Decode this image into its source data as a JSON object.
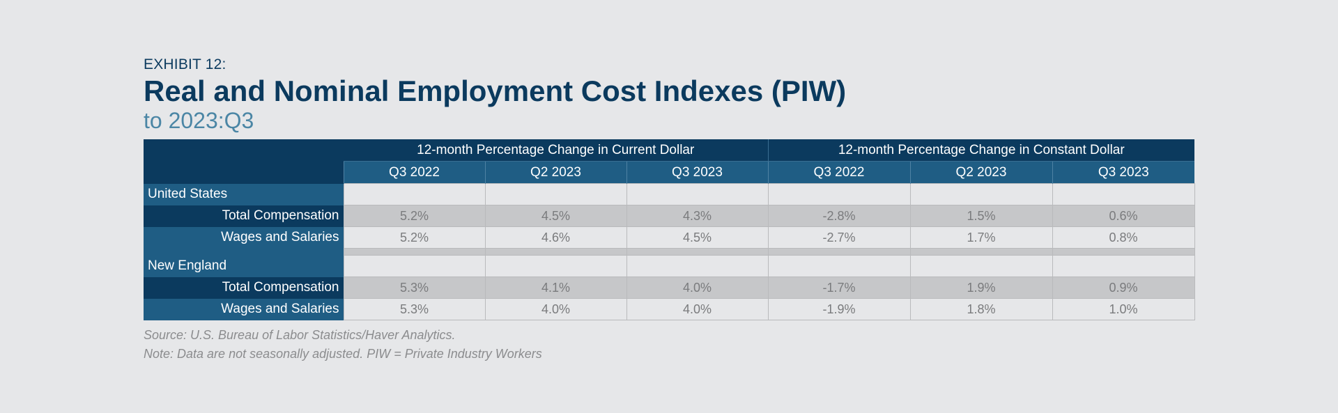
{
  "header": {
    "eyebrow": "EXHIBIT 12:",
    "title": "Real and Nominal Employment Cost Indexes (PIW)",
    "subtitle": "to 2023:Q3"
  },
  "chart_data": {
    "type": "table",
    "column_groups": [
      "12-month Percentage Change in Current Dollar",
      "12-month Percentage Change in Constant Dollar"
    ],
    "columns": [
      "Q3 2022",
      "Q2 2023",
      "Q3 2023",
      "Q3 2022",
      "Q2 2023",
      "Q3 2023"
    ],
    "sections": [
      {
        "name": "United States",
        "rows": [
          {
            "label": "Total Compensation",
            "values": [
              "5.2%",
              "4.5%",
              "4.3%",
              "-2.8%",
              "1.5%",
              "0.6%"
            ]
          },
          {
            "label": "Wages and Salaries",
            "values": [
              "5.2%",
              "4.6%",
              "4.5%",
              "-2.7%",
              "1.7%",
              "0.8%"
            ]
          }
        ]
      },
      {
        "name": "New England",
        "rows": [
          {
            "label": "Total Compensation",
            "values": [
              "5.3%",
              "4.1%",
              "4.0%",
              "-1.7%",
              "1.9%",
              "0.9%"
            ]
          },
          {
            "label": "Wages and Salaries",
            "values": [
              "5.3%",
              "4.0%",
              "4.0%",
              "-1.9%",
              "1.8%",
              "1.0%"
            ]
          }
        ]
      }
    ]
  },
  "footer": {
    "source": "Source: U.S. Bureau of Labor Statistics/Haver Analytics.",
    "note": "Note: Data are not seasonally adjusted. PIW = Private Industry Workers"
  },
  "colors": {
    "header_dark": "#0b3a5e",
    "header_mid": "#1f5d84",
    "subtitle": "#4b86a5",
    "row_light": "#e6e7e9",
    "row_grey": "#c6c7c9"
  }
}
